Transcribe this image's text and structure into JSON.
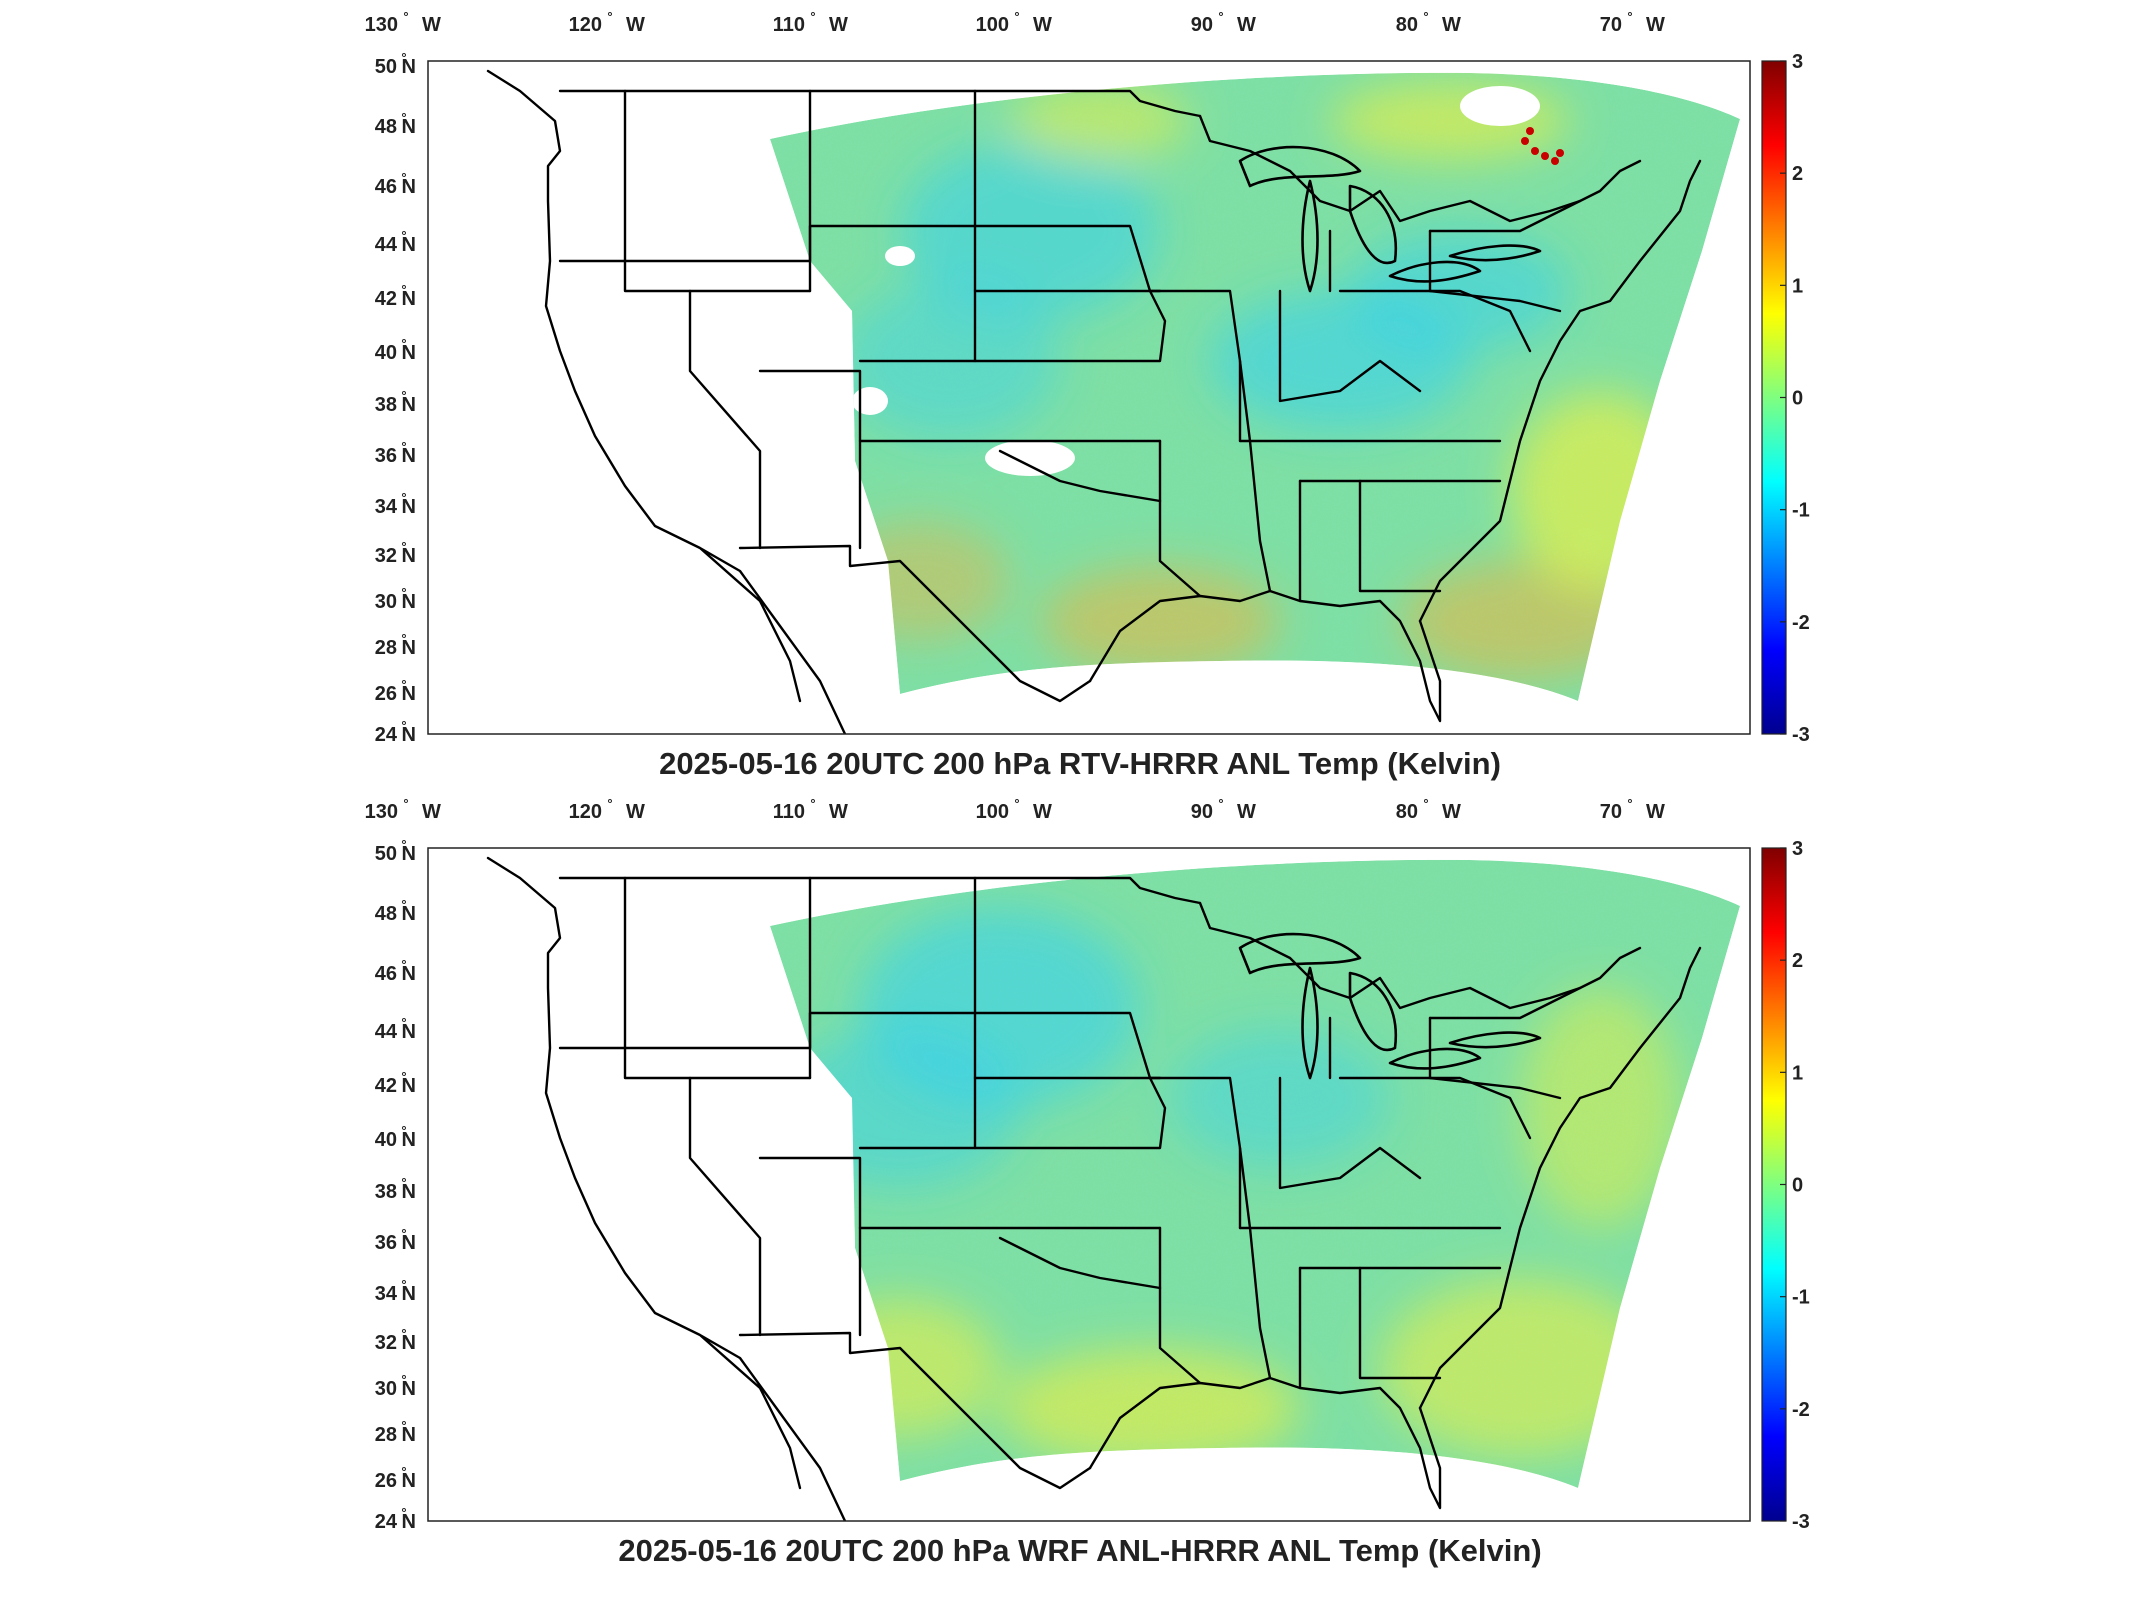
{
  "colors": {
    "domain_fill_mid": "#7fe0a0",
    "cyan_patch": "#30d0ee",
    "yellow_patch": "#e8f040",
    "orange_patch": "#f8b030"
  },
  "panels": [
    {
      "title": "2025-05-16 20UTC 200 hPa RTV-HRRR ANL Temp (Kelvin)",
      "lon_ticks": [
        "130",
        "120",
        "110",
        "100",
        "90",
        "80",
        "70"
      ],
      "lon_suffix": "W",
      "lat_ticks": [
        "50",
        "48",
        "46",
        "44",
        "42",
        "40",
        "38",
        "36",
        "34",
        "32",
        "30",
        "28",
        "26",
        "24"
      ],
      "lat_suffix": "N",
      "colorbar": {
        "min": -3,
        "max": 3,
        "ticks": [
          "3",
          "2",
          "1",
          "0",
          "-1",
          "-2",
          "-3"
        ],
        "colormap": "jet"
      },
      "field_pattern": "mostly green/cyan with yellow-orange south and east, blue patches near Ohio valley, red speckles near Quebec",
      "missing_data_patches": true
    },
    {
      "title": "2025-05-16 20UTC 200 hPa WRF ANL-HRRR ANL Temp (Kelvin)",
      "lon_ticks": [
        "130",
        "120",
        "110",
        "100",
        "90",
        "80",
        "70"
      ],
      "lon_suffix": "W",
      "lat_ticks": [
        "50",
        "48",
        "46",
        "44",
        "42",
        "40",
        "38",
        "36",
        "34",
        "32",
        "30",
        "28",
        "26",
        "24"
      ],
      "lat_suffix": "N",
      "colorbar": {
        "min": -3,
        "max": 3,
        "ticks": [
          "3",
          "2",
          "1",
          "0",
          "-1",
          "-2",
          "-3"
        ],
        "colormap": "jet"
      },
      "field_pattern": "smoother green/cyan field with yellow to the south and east, cyan over northern plains",
      "missing_data_patches": false
    }
  ]
}
